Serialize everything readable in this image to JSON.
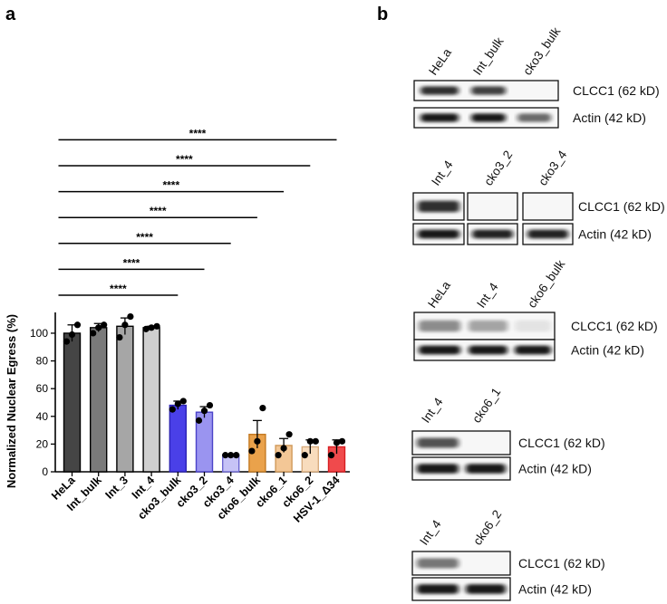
{
  "panels": {
    "a": "a",
    "b": "b"
  },
  "chart_data": {
    "type": "bar",
    "title": "",
    "xlabel": "",
    "ylabel": "Normalized Nuclear Egress (%)",
    "ylim": [
      0,
      115
    ],
    "yticks": [
      0,
      20,
      40,
      60,
      80,
      100
    ],
    "grid": false,
    "categories": [
      "HeLa",
      "Int_bulk",
      "Int_3",
      "Int_4",
      "cko3_bulk",
      "cko3_2",
      "cko3_4",
      "cko6_bulk",
      "cko6_1",
      "cko6_2",
      "HSV-1_Δ34"
    ],
    "values": [
      100,
      104,
      105,
      104,
      48,
      43,
      12,
      27,
      19,
      18,
      18
    ],
    "errors": [
      6,
      3,
      6,
      1,
      3,
      4,
      0.5,
      10,
      5,
      5,
      5
    ],
    "points": [
      [
        94,
        99,
        106
      ],
      [
        100,
        104,
        106
      ],
      [
        97,
        106,
        112
      ],
      [
        103,
        104,
        105
      ],
      [
        45,
        49,
        51
      ],
      [
        37,
        44,
        48
      ],
      [
        12,
        12,
        12
      ],
      [
        15,
        22,
        46
      ],
      [
        12,
        17,
        27
      ],
      [
        12,
        22,
        22
      ],
      [
        12,
        21,
        22
      ]
    ],
    "bar_colors": [
      "#454545",
      "#7a7a7a",
      "#a6a6a6",
      "#cfcfcf",
      "#4a40e8",
      "#9a94f0",
      "#c6c3f6",
      "#eaa24b",
      "#f3c796",
      "#f8dcbd",
      "#f04a4c"
    ],
    "edge_colors": [
      "#000000",
      "#000000",
      "#000000",
      "#000000",
      "#2b22b4",
      "#4b43c8",
      "#6c66d0",
      "#c47a22",
      "#d09a5a",
      "#d8ac7e",
      "#d81e22"
    ],
    "significance": [
      {
        "from": 0,
        "to": 4,
        "label": "****"
      },
      {
        "from": 0,
        "to": 5,
        "label": "****"
      },
      {
        "from": 0,
        "to": 6,
        "label": "****"
      },
      {
        "from": 0,
        "to": 7,
        "label": "****"
      },
      {
        "from": 0,
        "to": 8,
        "label": "****"
      },
      {
        "from": 0,
        "to": 9,
        "label": "****"
      },
      {
        "from": 0,
        "to": 10,
        "label": "****"
      }
    ]
  },
  "blots": [
    {
      "lanes": [
        "HeLa",
        "Int_bulk",
        "cko3_bulk"
      ],
      "rows": [
        {
          "label": "CLCC1 (62 kD)",
          "intensity": [
            0.85,
            0.78,
            0.0
          ]
        },
        {
          "label": "Actin (42 kD)",
          "intensity": [
            0.95,
            0.95,
            0.6
          ]
        }
      ]
    },
    {
      "lanes": [
        "Int_4",
        "cko3_2",
        "cko3_4"
      ],
      "rows": [
        {
          "label": "CLCC1 (62 kD)",
          "intensity": [
            0.85,
            0.0,
            0.0
          ]
        },
        {
          "label": "Actin (42 kD)",
          "intensity": [
            0.95,
            0.9,
            0.9
          ]
        }
      ]
    },
    {
      "lanes": [
        "HeLa",
        "Int_4",
        "cko6_bulk"
      ],
      "rows": [
        {
          "label": "CLCC1 (62 kD)",
          "intensity": [
            0.45,
            0.35,
            0.08
          ]
        },
        {
          "label": "Actin (42 kD)",
          "intensity": [
            0.95,
            0.95,
            0.95
          ]
        }
      ]
    },
    {
      "lanes": [
        "Int_4",
        "cko6_1"
      ],
      "rows": [
        {
          "label": "CLCC1 (62 kD)",
          "intensity": [
            0.7,
            0.0
          ]
        },
        {
          "label": "Actin (42 kD)",
          "intensity": [
            0.95,
            0.95
          ]
        }
      ]
    },
    {
      "lanes": [
        "Int_4",
        "cko6_2"
      ],
      "rows": [
        {
          "label": "CLCC1 (62 kD)",
          "intensity": [
            0.55,
            0.0
          ]
        },
        {
          "label": "Actin (42 kD)",
          "intensity": [
            0.95,
            0.95
          ]
        }
      ]
    }
  ]
}
